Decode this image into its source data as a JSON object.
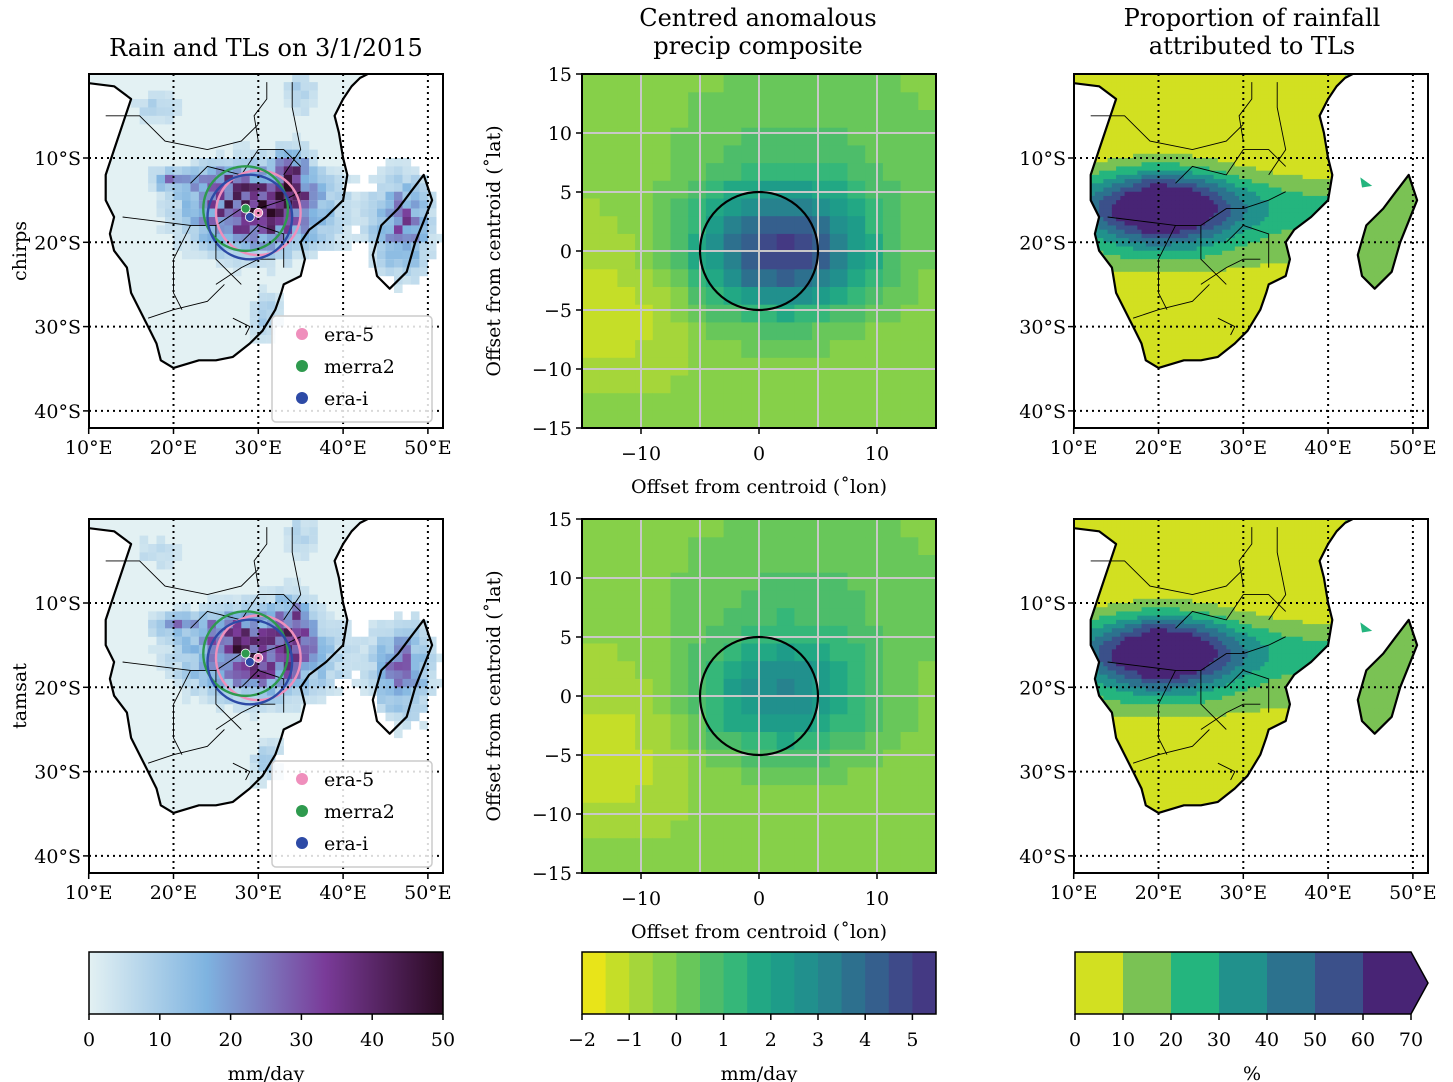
{
  "figure": {
    "col_titles": {
      "map_rain": [
        "Rain and TLs on 3/1/2015"
      ],
      "composite": [
        "Centred anomalous",
        "precip composite"
      ],
      "proportion": [
        "Proportion of rainfall",
        "attributed to TLs"
      ]
    },
    "row_labels": [
      "chirps",
      "tamsat"
    ]
  },
  "chart_data": [
    {
      "type": "heatmap",
      "name": "rain-tl-map",
      "title": "Rain and TLs on 3/1/2015",
      "rows": [
        "chirps",
        "tamsat"
      ],
      "x_ticks": [
        "10°E",
        "20°E",
        "30°E",
        "40°E",
        "50°E"
      ],
      "y_ticks": [
        "10°S",
        "20°S",
        "30°S",
        "40°S"
      ],
      "xlim_deg_east": [
        10,
        52
      ],
      "ylim_deg_south": [
        0,
        42
      ],
      "grid": "dotted",
      "legend": {
        "position": "lower-right",
        "entries": [
          "era-5",
          "merra2",
          "era-i"
        ]
      },
      "series_colors": {
        "era-5": "#ef8fbc",
        "merra2": "#2e9a4e",
        "era-i": "#2d4aa6"
      },
      "tl_centroids": {
        "chirps": [
          {
            "name": "era-5",
            "lon": 30.0,
            "lat": -16.5
          },
          {
            "name": "merra2",
            "lon": 28.5,
            "lat": -16.0
          },
          {
            "name": "era-i",
            "lon": 29.0,
            "lat": -17.0
          }
        ],
        "tamsat": [
          {
            "name": "era-5",
            "lon": 30.0,
            "lat": -16.5
          },
          {
            "name": "merra2",
            "lon": 28.5,
            "lat": -16.0
          },
          {
            "name": "era-i",
            "lon": 29.0,
            "lat": -17.0
          }
        ]
      },
      "colorbar": {
        "ticks": [
          "0",
          "10",
          "20",
          "30",
          "40",
          "50"
        ],
        "range": [
          0,
          50
        ],
        "label": "mm/day",
        "colors": [
          "#e3f1f3",
          "#7eb3e0",
          "#7a3b99",
          "#2b0a22"
        ]
      }
    },
    {
      "type": "heatmap",
      "name": "composite",
      "title": "Centred anomalous precip composite",
      "rows": [
        "chirps",
        "tamsat"
      ],
      "xlabel": "Offset from centroid (˚lon)",
      "ylabel": "Offset from centroid (˚lat)",
      "xlim": [
        -15,
        15
      ],
      "ylim": [
        -15,
        15
      ],
      "x_ticks": [
        -10,
        0,
        10
      ],
      "y_ticks": [
        -15,
        -10,
        -5,
        0,
        5,
        10,
        15
      ],
      "grid": true,
      "circle_radius": 5,
      "peak": {
        "x": 2,
        "y": 0,
        "value_chirps": 5.3,
        "value_tamsat": 3.2
      },
      "colorbar": {
        "ticks": [
          "−2",
          "−1",
          "0",
          "1",
          "2",
          "3",
          "4",
          "5"
        ],
        "range": [
          -2,
          5.5
        ],
        "label": "mm/day",
        "levels": [
          -2,
          -1.5,
          -1,
          -0.5,
          0,
          0.5,
          1,
          1.5,
          2,
          2.5,
          3,
          3.5,
          4,
          4.5,
          5,
          5.5
        ],
        "colors": [
          "#e8e419",
          "#c5de28",
          "#a5d63a",
          "#86d049",
          "#68c75a",
          "#4dbd6a",
          "#35b779",
          "#22a884",
          "#1e9c89",
          "#21908d",
          "#27828e",
          "#2d708e",
          "#355f8d",
          "#3e4a89",
          "#443983",
          "#472878",
          "#46146a"
        ]
      }
    },
    {
      "type": "heatmap",
      "name": "proportion",
      "title": "Proportion of rainfall attributed to TLs",
      "rows": [
        "chirps",
        "tamsat"
      ],
      "x_ticks": [
        "10°E",
        "20°E",
        "30°E",
        "40°E",
        "50°E"
      ],
      "y_ticks": [
        "10°S",
        "20°S",
        "30°S",
        "40°S"
      ],
      "grid": "dotted",
      "max_center": {
        "lon": 20,
        "lat": -16,
        "value_chirps": 68,
        "value_tamsat": 68
      },
      "colorbar": {
        "ticks": [
          "0",
          "10",
          "20",
          "30",
          "40",
          "50",
          "60",
          "70"
        ],
        "range": [
          0,
          70
        ],
        "label": "%",
        "levels": [
          0,
          10,
          20,
          30,
          40,
          50,
          60,
          70
        ],
        "colors": [
          "#d2e021",
          "#7ac254",
          "#24b57e",
          "#21918c",
          "#2c728e",
          "#3b508a",
          "#482475"
        ],
        "extend": "max"
      }
    }
  ]
}
